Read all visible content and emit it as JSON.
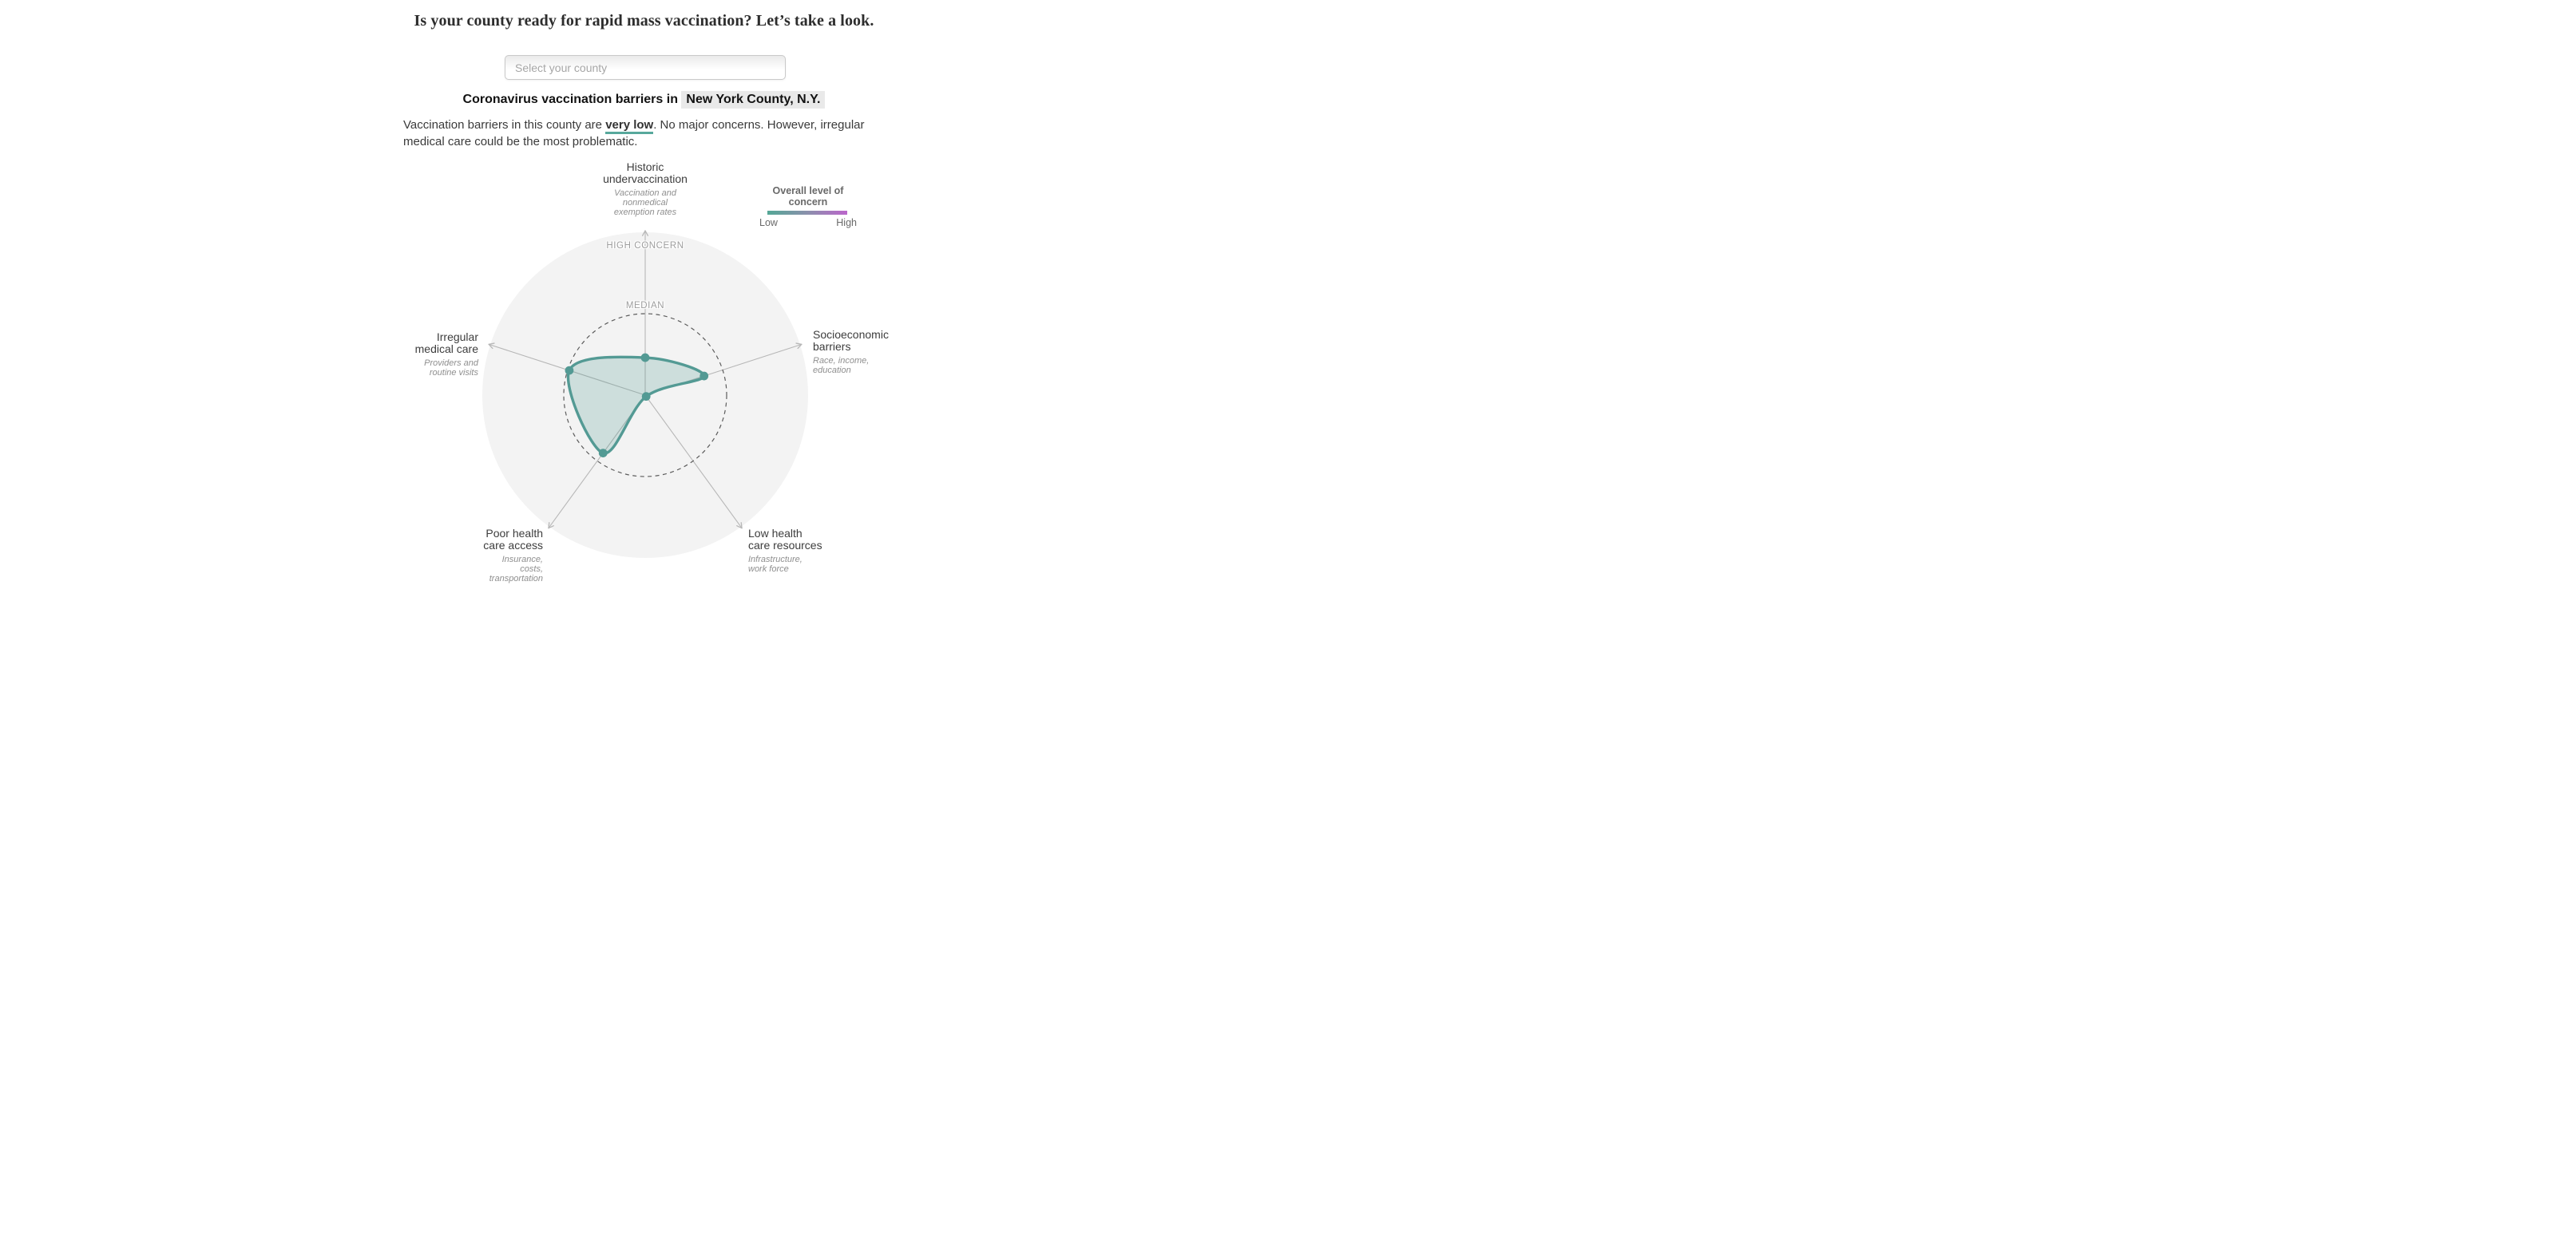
{
  "header": {
    "title": "Is your county ready for rapid mass vaccination? Let’s take a look.",
    "subtitle_prefix": "Coronavirus vaccination barriers in",
    "county": "New York County, N.Y."
  },
  "search": {
    "placeholder": "Select your county"
  },
  "summary": {
    "prefix": "Vaccination barriers in this county are ",
    "level": "very low",
    "suffix": ". No major concerns. However, irregular medical care could be the most problematic."
  },
  "legend": {
    "title": "Overall level of concern",
    "low_label": "Low",
    "high_label": "High",
    "gradient_from": "#54a796",
    "gradient_mid": "#8b90ac",
    "gradient_to": "#bb66cb"
  },
  "theme": {
    "accent_stroke": "#539a94",
    "accent_underline": "#57a89c",
    "radar_fill_opacity": 0.24,
    "ring_fill": "#f3f3f3",
    "axis_line": "#b7b7b7",
    "median_dash": "#5c5c5c"
  },
  "chart_data": {
    "type": "radar",
    "title": "Coronavirus vaccination barriers in New York County, N.Y.",
    "rings": {
      "high_concern_label": "HIGH CONCERN",
      "median_label": "MEDIAN",
      "median_ring_fraction": 0.5
    },
    "axis_scale": {
      "center": "low concern",
      "outer_edge": "high concern",
      "range": [
        0,
        1
      ]
    },
    "axes": [
      {
        "label": "Historic\nundervaccination",
        "sublabel": "Vaccination and\nnonmedical\nexemption rates",
        "angle_deg": 90,
        "value_fraction": 0.23
      },
      {
        "label": "Socioeconomic\nbarriers",
        "sublabel": "Race, income,\neducation",
        "angle_deg": 18,
        "value_fraction": 0.38
      },
      {
        "label": "Low health\ncare resources",
        "sublabel": "Infrastructure,\nwork force",
        "angle_deg": -54,
        "value_fraction": 0.01
      },
      {
        "label": "Poor health\ncare access",
        "sublabel": "Insurance,\ncosts,\ntransportation",
        "angle_deg": -126,
        "value_fraction": 0.44
      },
      {
        "label": "Irregular\nmedical care",
        "sublabel": "Providers and\nroutine visits",
        "angle_deg": 162,
        "value_fraction": 0.49
      }
    ],
    "series": [
      {
        "name": "New York County, N.Y.",
        "values_fraction": [
          0.23,
          0.38,
          0.01,
          0.44,
          0.49
        ]
      }
    ]
  }
}
